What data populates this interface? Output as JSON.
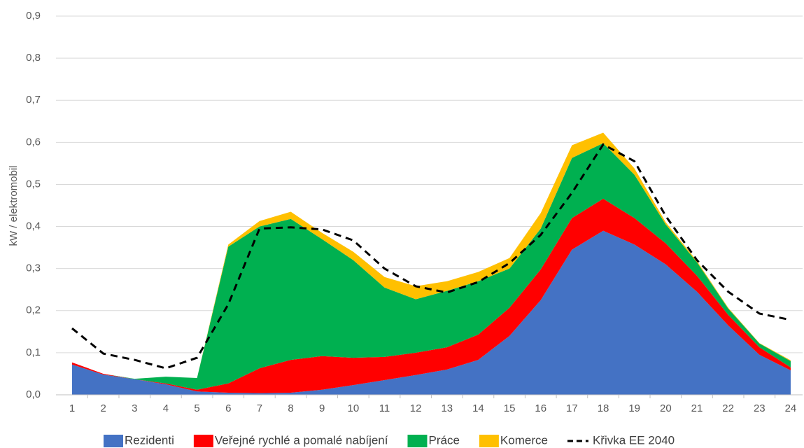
{
  "chart_data": {
    "type": "area",
    "y_label": "kW / elektromobil",
    "categories": [
      "1",
      "2",
      "3",
      "4",
      "5",
      "6",
      "7",
      "8",
      "9",
      "10",
      "11",
      "12",
      "13",
      "14",
      "15",
      "16",
      "17",
      "18",
      "19",
      "20",
      "21",
      "22",
      "23",
      "24"
    ],
    "ylim": [
      0,
      0.9
    ],
    "yticks": [
      {
        "value": 0,
        "label": "0,0"
      },
      {
        "value": 0.1,
        "label": "0,1"
      },
      {
        "value": 0.2,
        "label": "0,2"
      },
      {
        "value": 0.3,
        "label": "0,3"
      },
      {
        "value": 0.4,
        "label": "0,4"
      },
      {
        "value": 0.5,
        "label": "0,5"
      },
      {
        "value": 0.6,
        "label": "0,6"
      },
      {
        "value": 0.7,
        "label": "0,7"
      },
      {
        "value": 0.8,
        "label": "0,8"
      },
      {
        "value": 0.9,
        "label": "0,9"
      }
    ],
    "grid": true,
    "stacked": true,
    "series": [
      {
        "name": "Rezidenti",
        "type": "area",
        "color": "#4472c4",
        "values": [
          0.072,
          0.048,
          0.037,
          0.025,
          0.008,
          0.005,
          0.004,
          0.005,
          0.012,
          0.023,
          0.035,
          0.047,
          0.06,
          0.083,
          0.14,
          0.225,
          0.345,
          0.39,
          0.357,
          0.31,
          0.245,
          0.165,
          0.095,
          0.058
        ]
      },
      {
        "name": "Veřejné rychlé a pomalé nabíjení",
        "type": "area",
        "color": "#ff0000",
        "values": [
          0.005,
          0.002,
          0,
          0.002,
          0.004,
          0.022,
          0.059,
          0.078,
          0.08,
          0.065,
          0.055,
          0.053,
          0.053,
          0.06,
          0.067,
          0.073,
          0.075,
          0.076,
          0.063,
          0.05,
          0.038,
          0.025,
          0.018,
          0.007
        ]
      },
      {
        "name": "Práce",
        "type": "area",
        "color": "#00b050",
        "values": [
          0,
          0,
          0.001,
          0.016,
          0.028,
          0.325,
          0.337,
          0.335,
          0.278,
          0.232,
          0.165,
          0.127,
          0.134,
          0.127,
          0.093,
          0.097,
          0.143,
          0.132,
          0.103,
          0.045,
          0.032,
          0.015,
          0.009,
          0.015
        ]
      },
      {
        "name": "Komerce",
        "type": "area",
        "color": "#ffc000",
        "values": [
          0,
          0,
          0,
          0,
          0,
          0.005,
          0.013,
          0.017,
          0.015,
          0.02,
          0.025,
          0.031,
          0.023,
          0.022,
          0.025,
          0.037,
          0.03,
          0.025,
          0.015,
          0.005,
          0.003,
          0.002,
          0.001,
          0.002
        ]
      },
      {
        "name": "Křivka EE 2040",
        "type": "line",
        "dashed": true,
        "color": "#000000",
        "values": [
          0.158,
          0.098,
          0.083,
          0.063,
          0.088,
          0.215,
          0.395,
          0.398,
          0.393,
          0.367,
          0.3,
          0.258,
          0.243,
          0.268,
          0.313,
          0.38,
          0.48,
          0.595,
          0.555,
          0.425,
          0.32,
          0.245,
          0.193,
          0.178
        ]
      }
    ]
  }
}
